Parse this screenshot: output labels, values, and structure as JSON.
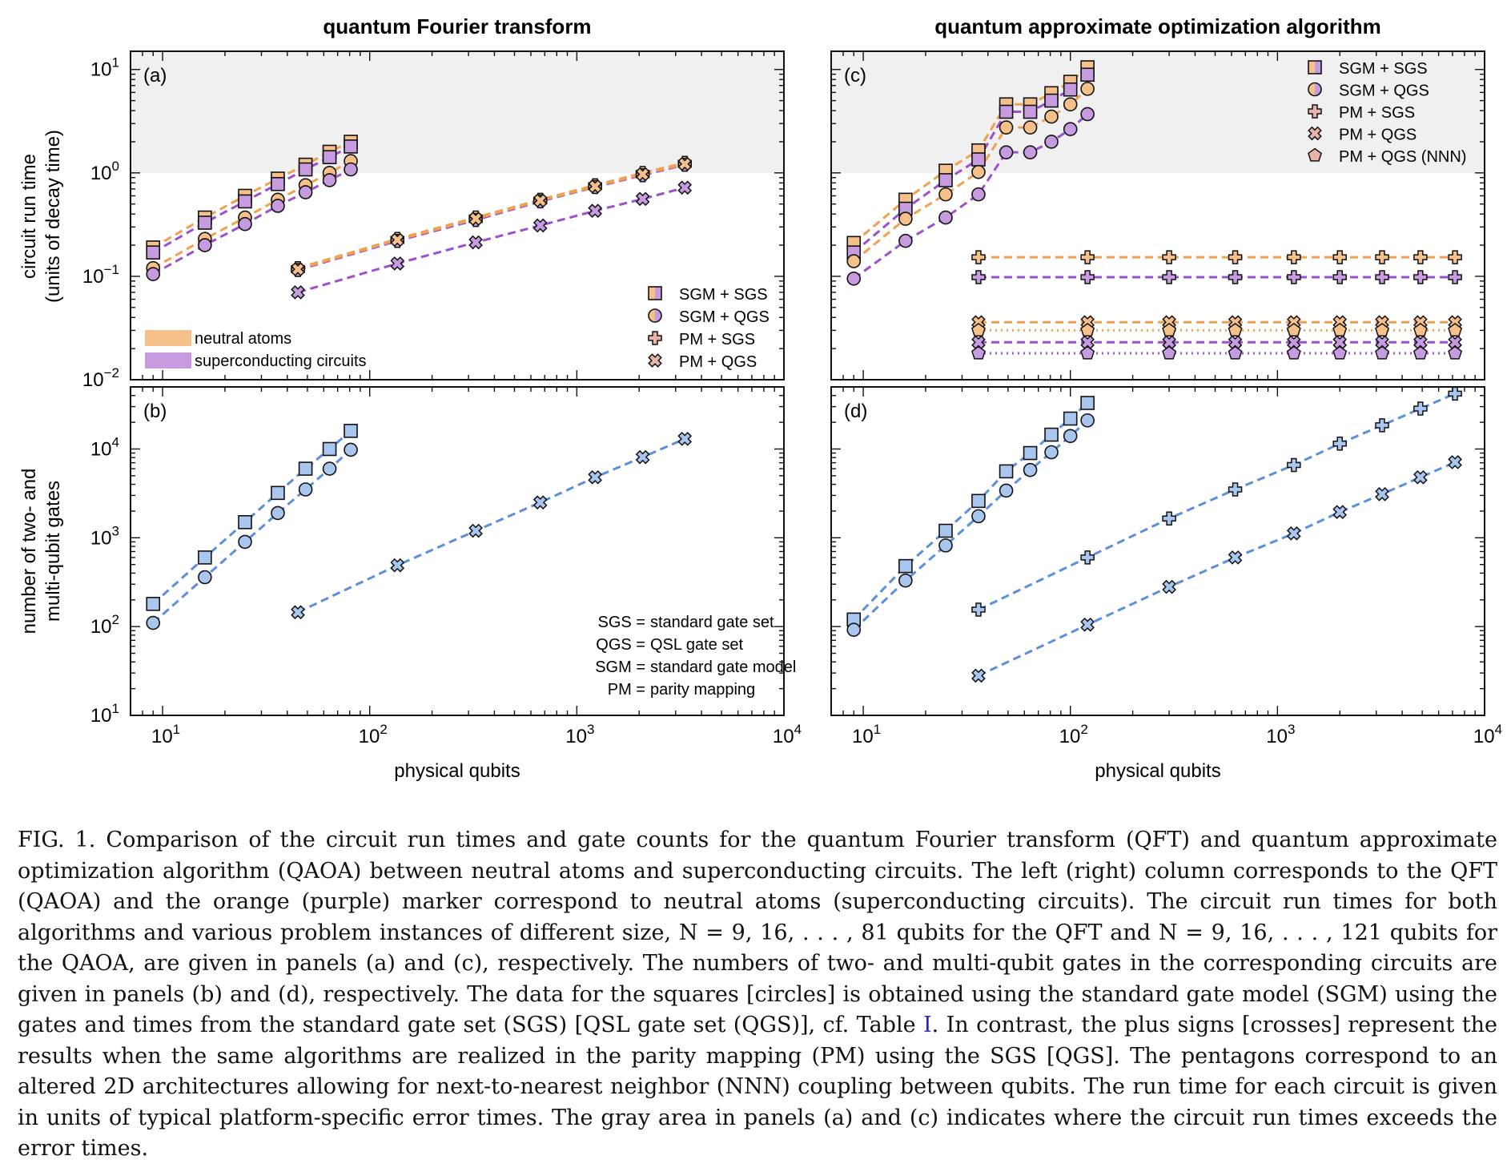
{
  "colors": {
    "neutral": "#f6c08a",
    "neutral_line": "#f0a04e",
    "superconducting": "#c79be0",
    "superconducting_line": "#9c4fcf",
    "gates": "#a8c6ee",
    "gates_line": "#5b8fde",
    "gray_area": "#f0f0f0"
  },
  "columns": {
    "left_title": "quantum Fourier transform",
    "right_title": "quantum approximate optimization algorithm"
  },
  "axes": {
    "xlabel": "physical qubits",
    "ylabel_top": [
      "circuit run time",
      "(units of decay time)"
    ],
    "ylabel_bottom": [
      "number of two- and",
      "multi-qubit gates"
    ]
  },
  "legends": {
    "platforms": [
      {
        "label": "neutral atoms",
        "color": "#f6c08a"
      },
      {
        "label": "superconducting circuits",
        "color": "#c79be0"
      }
    ],
    "markers_a": [
      {
        "marker": "square-split",
        "label": "SGM + SGS"
      },
      {
        "marker": "circle-split",
        "label": "SGM + QGS"
      },
      {
        "marker": "plus",
        "label": "PM + SGS"
      },
      {
        "marker": "cross",
        "label": "PM + QGS"
      }
    ],
    "markers_c": [
      {
        "marker": "square-split",
        "label": "SGM + SGS"
      },
      {
        "marker": "circle-split",
        "label": "SGM + QGS"
      },
      {
        "marker": "plus",
        "label": "PM + SGS"
      },
      {
        "marker": "cross",
        "label": "PM + QGS"
      },
      {
        "marker": "pentagon",
        "label": "PM + QGS (NNN)"
      }
    ],
    "abbreviations": [
      "SGS = standard gate set",
      "QGS = QSL gate set",
      "SGM = standard gate model",
      "PM = parity mapping"
    ]
  },
  "chart_data": [
    {
      "panel": "(a)",
      "type": "line",
      "xscale": "log",
      "yscale": "log",
      "xlim": [
        7,
        10000
      ],
      "ylim": [
        0.01,
        15
      ],
      "gray_area_above": 1,
      "series": [
        {
          "platform": "neutral",
          "marker": "square",
          "x": [
            9,
            16,
            25,
            36,
            49,
            64,
            81
          ],
          "y": [
            0.19,
            0.37,
            0.6,
            0.88,
            1.2,
            1.6,
            2.0
          ]
        },
        {
          "platform": "superconducting",
          "marker": "square",
          "x": [
            9,
            16,
            25,
            36,
            49,
            64,
            81
          ],
          "y": [
            0.17,
            0.33,
            0.53,
            0.78,
            1.08,
            1.42,
            1.8
          ]
        },
        {
          "platform": "neutral",
          "marker": "circle",
          "x": [
            9,
            16,
            25,
            36,
            49,
            64,
            81
          ],
          "y": [
            0.12,
            0.23,
            0.37,
            0.55,
            0.76,
            1.0,
            1.3
          ]
        },
        {
          "platform": "superconducting",
          "marker": "circle",
          "x": [
            9,
            16,
            25,
            36,
            49,
            64,
            81
          ],
          "y": [
            0.105,
            0.2,
            0.32,
            0.48,
            0.65,
            0.85,
            1.08
          ]
        },
        {
          "platform": "neutral",
          "marker": "plus",
          "x": [
            45,
            136,
            325,
            666,
            1225,
            2080,
            3321
          ],
          "y": [
            0.12,
            0.23,
            0.37,
            0.55,
            0.76,
            1.0,
            1.25
          ]
        },
        {
          "platform": "superconducting",
          "marker": "plus",
          "x": [
            45,
            136,
            325,
            666,
            1225,
            2080,
            3321
          ],
          "y": [
            0.115,
            0.22,
            0.35,
            0.53,
            0.73,
            0.95,
            1.2
          ]
        },
        {
          "platform": "neutral",
          "marker": "cross",
          "x": [
            45,
            136,
            325,
            666,
            1225,
            2080,
            3321
          ],
          "y": [
            0.117,
            0.225,
            0.36,
            0.54,
            0.74,
            0.97,
            1.22
          ]
        },
        {
          "platform": "superconducting",
          "marker": "cross",
          "x": [
            45,
            136,
            325,
            666,
            1225,
            2080,
            3321
          ],
          "y": [
            0.07,
            0.133,
            0.213,
            0.31,
            0.43,
            0.56,
            0.72
          ]
        }
      ]
    },
    {
      "panel": "(b)",
      "type": "line",
      "xscale": "log",
      "yscale": "log",
      "xlim": [
        7,
        10000
      ],
      "ylim": [
        10,
        50000
      ],
      "series": [
        {
          "platform": "gates",
          "marker": "square",
          "x": [
            9,
            16,
            25,
            36,
            49,
            64,
            81
          ],
          "y": [
            180,
            600,
            1500,
            3200,
            6000,
            10000,
            16000
          ]
        },
        {
          "platform": "gates",
          "marker": "circle",
          "x": [
            9,
            16,
            25,
            36,
            49,
            64,
            81
          ],
          "y": [
            110,
            360,
            900,
            1900,
            3500,
            6000,
            9800
          ]
        },
        {
          "platform": "gates",
          "marker": "cross",
          "x": [
            45,
            136,
            325,
            666,
            1225,
            2080,
            3321
          ],
          "y": [
            145,
            490,
            1200,
            2500,
            4800,
            8100,
            13000
          ]
        }
      ]
    },
    {
      "panel": "(c)",
      "type": "line",
      "xscale": "log",
      "yscale": "log",
      "xlim": [
        7,
        10000
      ],
      "ylim": [
        0.01,
        15
      ],
      "gray_area_above": 1,
      "series": [
        {
          "platform": "neutral",
          "marker": "square",
          "x": [
            9,
            16,
            25,
            36,
            49,
            64,
            81,
            100,
            121
          ],
          "y": [
            0.21,
            0.55,
            1.05,
            1.65,
            4.6,
            4.6,
            5.9,
            7.6,
            10.5
          ]
        },
        {
          "platform": "superconducting",
          "marker": "square",
          "x": [
            9,
            16,
            25,
            36,
            49,
            64,
            81,
            100,
            121
          ],
          "y": [
            0.17,
            0.45,
            0.85,
            1.35,
            3.9,
            3.9,
            5.0,
            6.4,
            8.9
          ]
        },
        {
          "platform": "neutral",
          "marker": "circle",
          "x": [
            9,
            16,
            25,
            36,
            49,
            64,
            81,
            100,
            121
          ],
          "y": [
            0.14,
            0.36,
            0.62,
            1.02,
            2.75,
            2.75,
            3.5,
            4.6,
            6.5
          ]
        },
        {
          "platform": "superconducting",
          "marker": "circle",
          "x": [
            9,
            16,
            25,
            36,
            49,
            64,
            81,
            100,
            121
          ],
          "y": [
            0.095,
            0.22,
            0.37,
            0.62,
            1.58,
            1.58,
            2.0,
            2.65,
            3.7
          ]
        },
        {
          "platform": "neutral",
          "marker": "plus",
          "x": [
            36,
            121,
            300,
            625,
            1200,
            2000,
            3200,
            4900,
            7200
          ],
          "y": [
            0.153,
            0.153,
            0.153,
            0.153,
            0.153,
            0.153,
            0.153,
            0.153,
            0.153
          ]
        },
        {
          "platform": "superconducting",
          "marker": "plus",
          "x": [
            36,
            121,
            300,
            625,
            1200,
            2000,
            3200,
            4900,
            7200
          ],
          "y": [
            0.098,
            0.098,
            0.098,
            0.098,
            0.098,
            0.098,
            0.098,
            0.098,
            0.098
          ]
        },
        {
          "platform": "neutral",
          "marker": "cross",
          "x": [
            36,
            121,
            300,
            625,
            1200,
            2000,
            3200,
            4900,
            7200
          ],
          "y": [
            0.036,
            0.036,
            0.036,
            0.036,
            0.036,
            0.036,
            0.036,
            0.036,
            0.036
          ]
        },
        {
          "platform": "neutral",
          "marker": "pentagon",
          "x": [
            36,
            121,
            300,
            625,
            1200,
            2000,
            3200,
            4900,
            7200
          ],
          "y": [
            0.03,
            0.03,
            0.03,
            0.03,
            0.03,
            0.03,
            0.03,
            0.03,
            0.03
          ]
        },
        {
          "platform": "superconducting",
          "marker": "cross",
          "x": [
            36,
            121,
            300,
            625,
            1200,
            2000,
            3200,
            4900,
            7200
          ],
          "y": [
            0.023,
            0.023,
            0.023,
            0.023,
            0.023,
            0.023,
            0.023,
            0.023,
            0.023
          ]
        },
        {
          "platform": "superconducting",
          "marker": "pentagon",
          "x": [
            36,
            121,
            300,
            625,
            1200,
            2000,
            3200,
            4900,
            7200
          ],
          "y": [
            0.018,
            0.018,
            0.018,
            0.018,
            0.018,
            0.018,
            0.018,
            0.018,
            0.018
          ]
        }
      ]
    },
    {
      "panel": "(d)",
      "type": "line",
      "xscale": "log",
      "yscale": "log",
      "xlim": [
        7,
        10000
      ],
      "ylim": [
        10,
        50000
      ],
      "series": [
        {
          "platform": "gates",
          "marker": "square",
          "x": [
            9,
            16,
            25,
            36,
            49,
            64,
            81,
            100,
            121
          ],
          "y": [
            120,
            480,
            1200,
            2600,
            5600,
            9000,
            14500,
            22000,
            33000
          ]
        },
        {
          "platform": "gates",
          "marker": "circle",
          "x": [
            9,
            16,
            25,
            36,
            49,
            64,
            81,
            100,
            121
          ],
          "y": [
            92,
            330,
            820,
            1750,
            3400,
            5800,
            9200,
            14000,
            21000
          ]
        },
        {
          "platform": "gates",
          "marker": "plus",
          "x": [
            36,
            121,
            300,
            625,
            1200,
            2000,
            3200,
            4900,
            7200
          ],
          "y": [
            155,
            600,
            1650,
            3500,
            6600,
            11500,
            18500,
            28500,
            42000
          ]
        },
        {
          "platform": "gates",
          "marker": "cross",
          "x": [
            36,
            121,
            300,
            625,
            1200,
            2000,
            3200,
            4900,
            7200
          ],
          "y": [
            28,
            105,
            280,
            600,
            1120,
            1950,
            3100,
            4800,
            7100
          ]
        }
      ]
    }
  ],
  "ticks": {
    "x": [
      {
        "base": "10",
        "exp": "1"
      },
      {
        "base": "10",
        "exp": "2"
      },
      {
        "base": "10",
        "exp": "3"
      },
      {
        "base": "10",
        "exp": "4"
      }
    ],
    "y_top": [
      {
        "base": "10",
        "exp": "1"
      },
      {
        "base": "10",
        "exp": "0"
      },
      {
        "base": "10",
        "exp": "−1"
      },
      {
        "base": "10",
        "exp": "−2"
      }
    ],
    "y_bottom": [
      {
        "base": "10",
        "exp": "4"
      },
      {
        "base": "10",
        "exp": "3"
      },
      {
        "base": "10",
        "exp": "2"
      },
      {
        "base": "10",
        "exp": "1"
      }
    ]
  },
  "caption": {
    "part1": "FIG. 1.  Comparison of the circuit run times and gate counts for the quantum Fourier transform (QFT) and quantum approximate optimization algorithm (QAOA) between neutral atoms and superconducting circuits.  The left (right) column corresponds to the QFT (QAOA) and the orange (purple) marker correspond to neutral atoms (superconducting circuits). The circuit run times for both algorithms and various problem instances of different size, N = 9, 16, . . . , 81 qubits for the QFT and N = 9, 16, . . . , 121 qubits for the QAOA, are given in panels (a) and (c), respectively.  The numbers of two- and multi-qubit gates in the corresponding circuits are given in panels (b) and (d), respectively. The data for the squares [circles] is obtained using the standard gate model (SGM) using the gates and times from the standard gate set (SGS) [QSL gate set (QGS)], cf. Table ",
    "ref": "I",
    "part2": ". In contrast, the plus signs [crosses] represent the results when the same algorithms are realized in the parity mapping (PM) using the SGS [QGS]. The pentagons correspond to an altered 2D architectures allowing for next-to-nearest neighbor (NNN) coupling between qubits. The run time for each circuit is given in units of typical platform-specific error times. The gray area in panels (a) and (c) indicates where the circuit run times exceeds the error times."
  }
}
